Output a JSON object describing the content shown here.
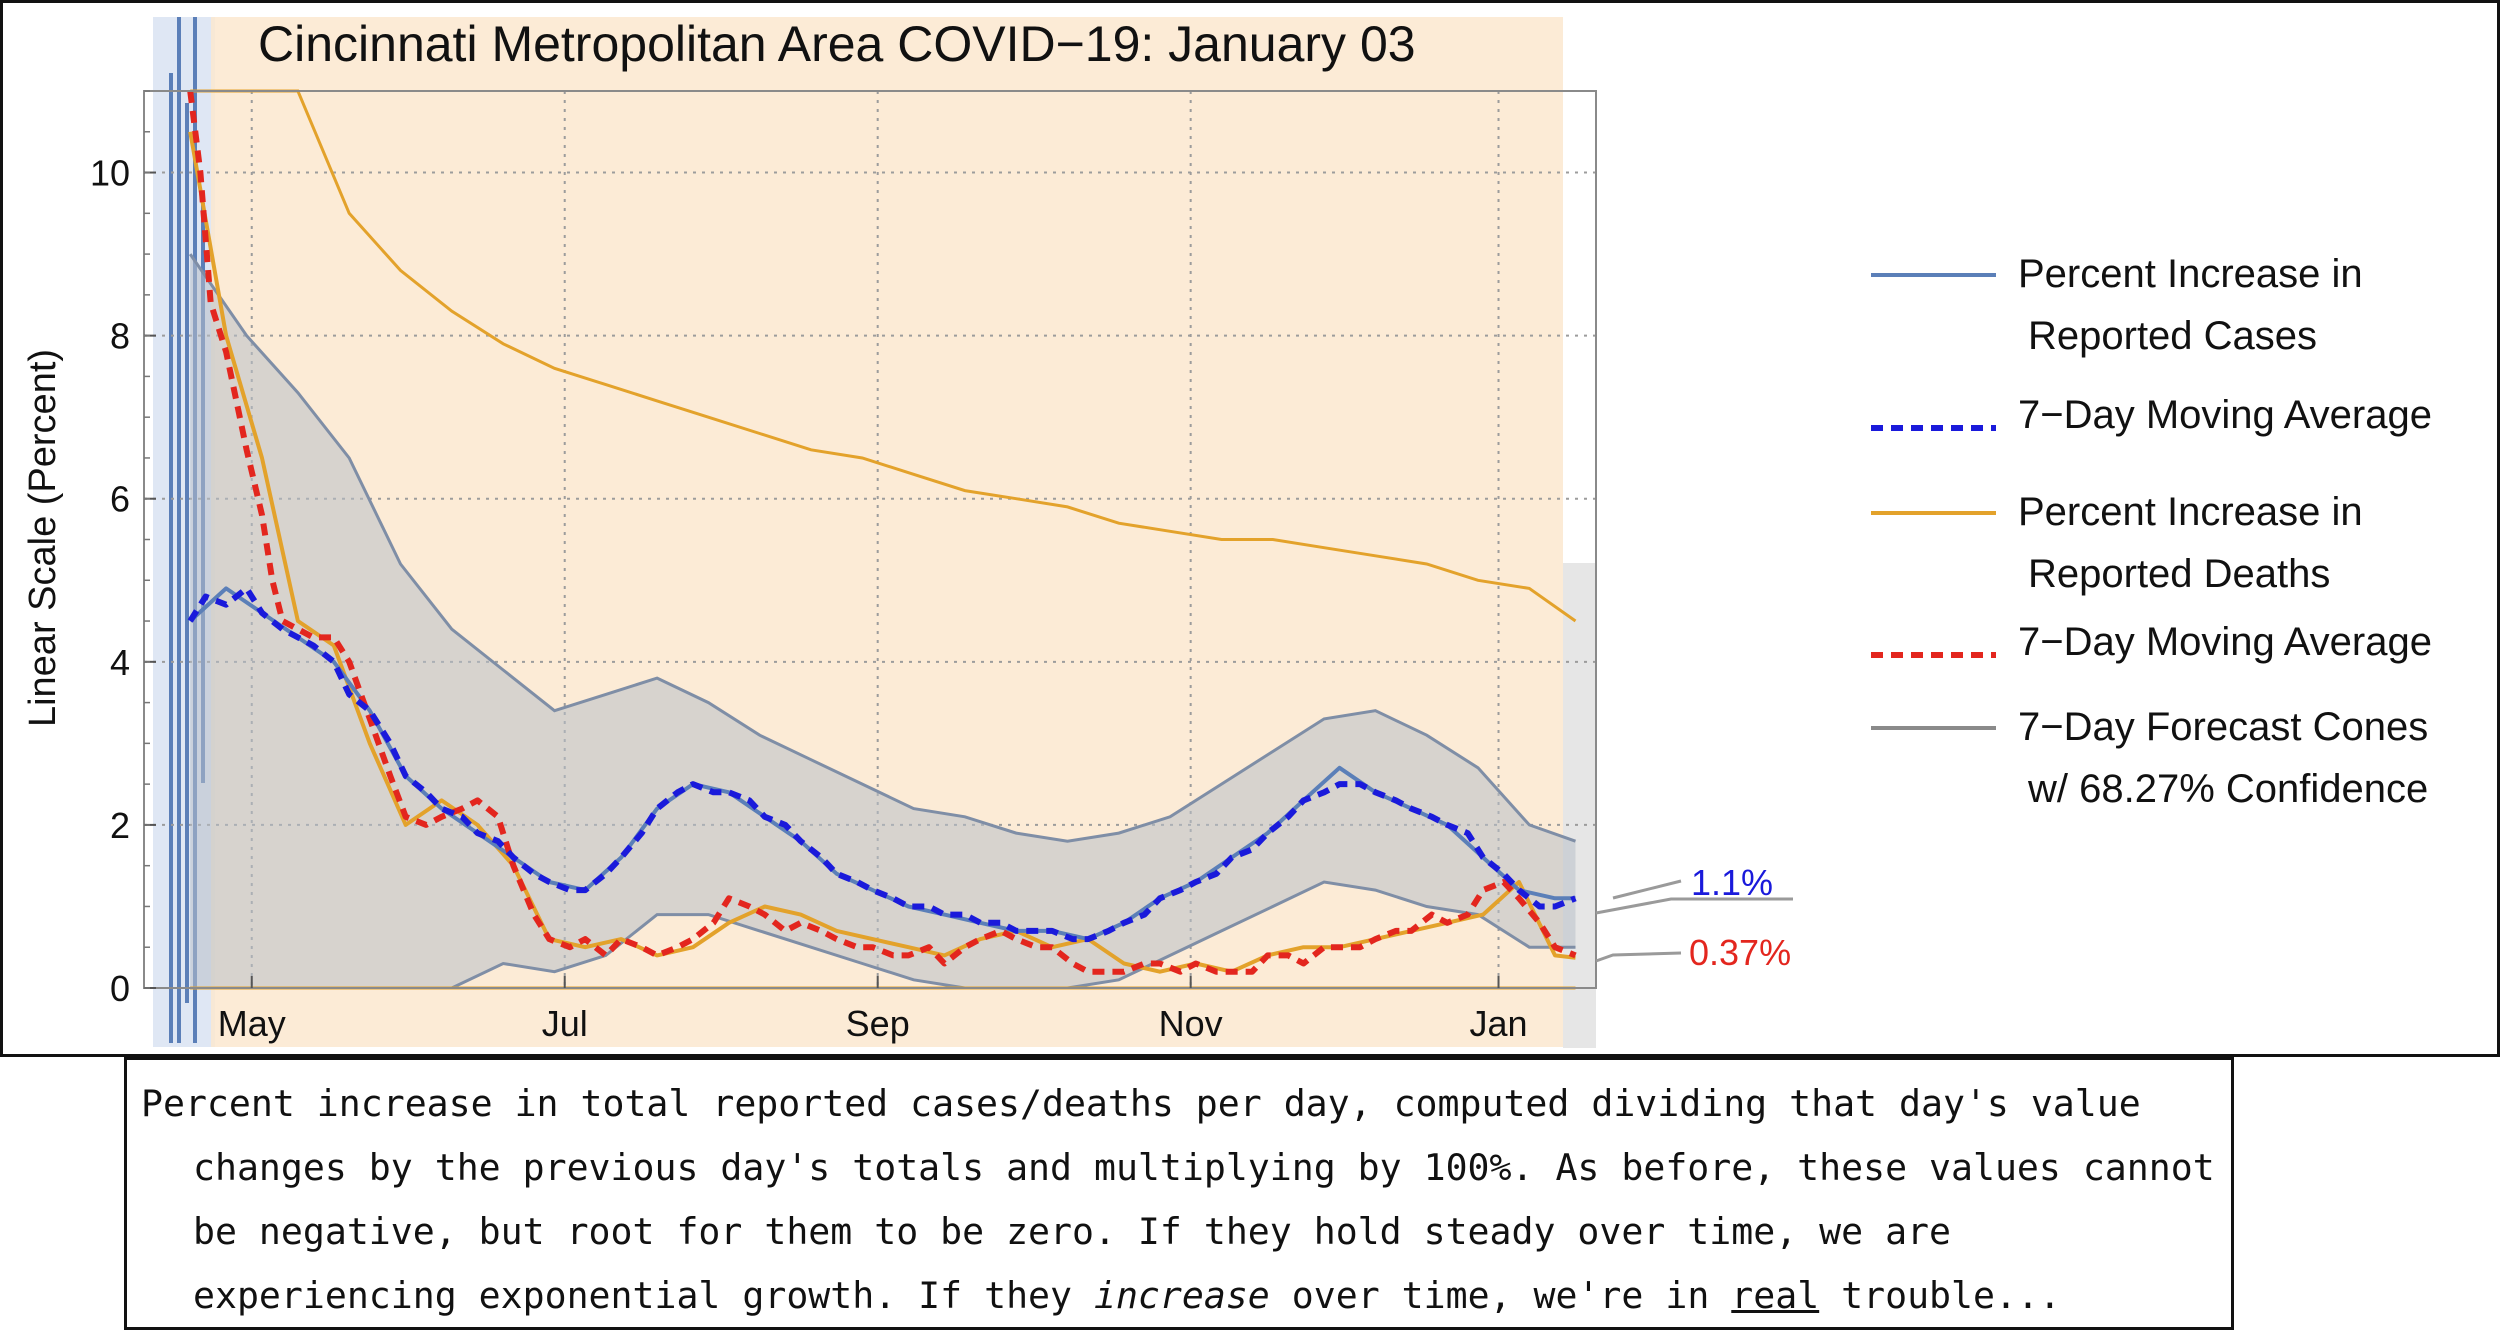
{
  "chart_data": {
    "type": "line",
    "title": "Cincinnati Metropolitan Area COVID−19: January 03",
    "xlabel": "",
    "ylabel": "Linear Scale (Percent)",
    "x_tick_labels": [
      "May",
      "Jul",
      "Sep",
      "Nov",
      "Jan"
    ],
    "y_tick_labels": [
      "0",
      "2",
      "4",
      "6",
      "8",
      "10"
    ],
    "ylim": [
      0,
      11
    ],
    "grid": true,
    "legend_position": "right",
    "legend": [
      {
        "line1": "Percent Increase in",
        "line2": "Reported Cases",
        "color": "#5b7fb8",
        "style": "solid"
      },
      {
        "line1": "7−Day Moving Average",
        "line2": "",
        "color": "#1a1adb",
        "style": "dashed"
      },
      {
        "line1": "Percent Increase in",
        "line2": "Reported Deaths",
        "color": "#e3a22b",
        "style": "solid"
      },
      {
        "line1": "7−Day Moving Average",
        "line2": "",
        "color": "#e3261e",
        "style": "dashed"
      },
      {
        "line1": "7−Day Forecast Cones",
        "line2": "w/ 68.27% Confidence",
        "color": "#8a8a8a",
        "style": "solid"
      }
    ],
    "end_labels": {
      "cases": "1.1%",
      "deaths": "0.37%"
    },
    "series": [
      {
        "name": "Percent Increase in Reported Cases",
        "x": [
          9,
          16,
          23,
          30,
          37,
          44,
          51,
          58,
          65,
          72,
          79,
          86,
          93,
          100,
          107,
          114,
          121,
          128,
          135,
          142,
          149,
          156,
          163,
          170,
          177,
          184,
          191,
          198,
          205,
          212,
          219,
          226,
          233,
          240,
          247,
          254,
          261,
          268,
          275,
          279
        ],
        "values": [
          4.5,
          4.9,
          4.6,
          4.3,
          4.0,
          3.4,
          2.6,
          2.2,
          1.9,
          1.6,
          1.3,
          1.2,
          1.6,
          2.2,
          2.5,
          2.4,
          2.1,
          1.8,
          1.4,
          1.2,
          1.0,
          0.9,
          0.8,
          0.7,
          0.7,
          0.6,
          0.8,
          1.1,
          1.3,
          1.6,
          1.9,
          2.3,
          2.7,
          2.4,
          2.2,
          2.0,
          1.6,
          1.2,
          1.1,
          1.1
        ]
      },
      {
        "name": "7−Day Moving Average",
        "x": [
          9,
          12,
          16,
          20,
          23,
          27,
          30,
          33,
          37,
          40,
          44,
          48,
          51,
          55,
          58,
          62,
          65,
          69,
          72,
          76,
          79,
          83,
          86,
          90,
          93,
          97,
          100,
          104,
          107,
          111,
          114,
          118,
          121,
          125,
          128,
          132,
          135,
          139,
          142,
          146,
          149,
          153,
          156,
          160,
          163,
          167,
          170,
          174,
          177,
          181,
          184,
          188,
          191,
          195,
          198,
          202,
          205,
          209,
          212,
          216,
          219,
          223,
          226,
          230,
          233,
          237,
          240,
          244,
          247,
          251,
          254,
          258,
          261,
          265,
          268,
          272,
          275,
          279
        ],
        "values": [
          4.5,
          4.8,
          4.7,
          4.9,
          4.6,
          4.4,
          4.3,
          4.2,
          4.0,
          3.6,
          3.4,
          3.0,
          2.6,
          2.4,
          2.2,
          2.1,
          1.9,
          1.8,
          1.6,
          1.4,
          1.3,
          1.2,
          1.2,
          1.4,
          1.6,
          1.9,
          2.2,
          2.4,
          2.5,
          2.4,
          2.4,
          2.3,
          2.1,
          2.0,
          1.8,
          1.6,
          1.4,
          1.3,
          1.2,
          1.1,
          1.0,
          1.0,
          0.9,
          0.9,
          0.8,
          0.8,
          0.7,
          0.7,
          0.7,
          0.6,
          0.6,
          0.7,
          0.8,
          0.9,
          1.1,
          1.2,
          1.3,
          1.4,
          1.6,
          1.7,
          1.9,
          2.1,
          2.3,
          2.4,
          2.5,
          2.5,
          2.4,
          2.3,
          2.2,
          2.1,
          2.0,
          1.9,
          1.6,
          1.4,
          1.2,
          1.0,
          1.0,
          1.1
        ]
      },
      {
        "name": "Percent Increase in Reported Deaths",
        "x": [
          9,
          16,
          23,
          30,
          37,
          44,
          51,
          58,
          65,
          72,
          79,
          86,
          93,
          100,
          107,
          114,
          121,
          128,
          135,
          142,
          149,
          156,
          163,
          170,
          177,
          184,
          191,
          198,
          205,
          212,
          219,
          226,
          233,
          240,
          247,
          254,
          261,
          268,
          275,
          279
        ],
        "values": [
          10.5,
          8.0,
          6.5,
          4.5,
          4.2,
          3.0,
          2.0,
          2.3,
          2.0,
          1.5,
          0.6,
          0.5,
          0.6,
          0.4,
          0.5,
          0.8,
          1.0,
          0.9,
          0.7,
          0.6,
          0.5,
          0.4,
          0.6,
          0.7,
          0.5,
          0.6,
          0.3,
          0.2,
          0.3,
          0.2,
          0.4,
          0.5,
          0.5,
          0.6,
          0.7,
          0.8,
          0.9,
          1.3,
          0.4,
          0.37
        ]
      },
      {
        "name": "7−Day Moving Average",
        "x": [
          9,
          11,
          13,
          16,
          18,
          20,
          23,
          25,
          27,
          30,
          33,
          37,
          40,
          44,
          48,
          51,
          55,
          58,
          62,
          65,
          69,
          72,
          76,
          79,
          83,
          86,
          90,
          93,
          97,
          100,
          104,
          107,
          111,
          114,
          118,
          121,
          125,
          128,
          132,
          135,
          139,
          142,
          146,
          149,
          153,
          156,
          160,
          163,
          167,
          170,
          174,
          177,
          181,
          184,
          188,
          191,
          195,
          198,
          202,
          205,
          209,
          212,
          216,
          219,
          223,
          226,
          230,
          233,
          237,
          240,
          244,
          247,
          251,
          254,
          258,
          261,
          265,
          268,
          272,
          275,
          279
        ],
        "values": [
          11.0,
          10.0,
          8.4,
          7.8,
          7.2,
          6.6,
          5.8,
          5.0,
          4.5,
          4.4,
          4.3,
          4.3,
          4.0,
          3.3,
          2.6,
          2.1,
          2.0,
          2.1,
          2.2,
          2.3,
          2.1,
          1.5,
          0.9,
          0.6,
          0.5,
          0.6,
          0.4,
          0.6,
          0.5,
          0.4,
          0.5,
          0.6,
          0.8,
          1.1,
          1.0,
          0.9,
          0.7,
          0.8,
          0.7,
          0.6,
          0.5,
          0.5,
          0.4,
          0.4,
          0.5,
          0.3,
          0.5,
          0.6,
          0.7,
          0.6,
          0.5,
          0.5,
          0.3,
          0.2,
          0.2,
          0.2,
          0.3,
          0.3,
          0.2,
          0.3,
          0.2,
          0.2,
          0.2,
          0.4,
          0.4,
          0.3,
          0.5,
          0.5,
          0.5,
          0.6,
          0.7,
          0.7,
          0.9,
          0.8,
          0.9,
          1.2,
          1.3,
          1.1,
          0.8,
          0.5,
          0.4
        ]
      }
    ],
    "cones": [
      {
        "name": "cases",
        "x": [
          9,
          20,
          30,
          40,
          50,
          60,
          70,
          80,
          90,
          100,
          110,
          120,
          130,
          140,
          150,
          160,
          170,
          180,
          190,
          200,
          210,
          220,
          230,
          240,
          250,
          260,
          270,
          279
        ],
        "lower": [
          0.0,
          0.0,
          0.0,
          0.0,
          0.0,
          0.0,
          0.3,
          0.2,
          0.4,
          0.9,
          0.9,
          0.7,
          0.5,
          0.3,
          0.1,
          0.0,
          0.0,
          0.0,
          0.1,
          0.4,
          0.7,
          1.0,
          1.3,
          1.2,
          1.0,
          0.9,
          0.5,
          0.5
        ],
        "upper": [
          9.0,
          8.0,
          7.3,
          6.5,
          5.2,
          4.4,
          3.9,
          3.4,
          3.6,
          3.8,
          3.5,
          3.1,
          2.8,
          2.5,
          2.2,
          2.1,
          1.9,
          1.8,
          1.9,
          2.1,
          2.5,
          2.9,
          3.3,
          3.4,
          3.1,
          2.7,
          2.0,
          1.8
        ]
      },
      {
        "name": "deaths",
        "x": [
          9,
          20,
          30,
          40,
          50,
          60,
          70,
          80,
          90,
          100,
          110,
          120,
          130,
          140,
          150,
          160,
          170,
          180,
          190,
          200,
          210,
          220,
          230,
          240,
          250,
          260,
          270,
          279
        ],
        "lower": [
          0.0,
          0.0,
          0.0,
          0.0,
          0.0,
          0.0,
          0.0,
          0.0,
          0.0,
          0.0,
          0.0,
          0.0,
          0.0,
          0.0,
          0.0,
          0.0,
          0.0,
          0.0,
          0.0,
          0.0,
          0.0,
          0.0,
          0.0,
          0.0,
          0.0,
          0.0,
          0.0,
          0.0
        ],
        "upper": [
          11.0,
          11.0,
          11.0,
          9.5,
          8.8,
          8.3,
          7.9,
          7.6,
          7.4,
          7.2,
          7.0,
          6.8,
          6.6,
          6.5,
          6.3,
          6.1,
          6.0,
          5.9,
          5.7,
          5.6,
          5.5,
          5.5,
          5.4,
          5.3,
          5.2,
          5.0,
          4.9,
          4.5
        ]
      }
    ]
  },
  "caption": {
    "line1": "Percent increase in total reported cases/deaths per day, computed dividing that day's value changes by the previous day's totals and multiplying by 100%. As before, these values cannot be negative, but root for them to be zero. If they hold steady over time, we are experiencing exponential growth. If they ",
    "emph": "increase",
    "mid": " over time, we're in ",
    "underline": "real",
    "end": " trouble..."
  },
  "colors": {
    "cases": "#5b7fb8",
    "cases_avg": "#1a1adb",
    "deaths": "#e3a22b",
    "deaths_avg": "#e3261e",
    "cone": "#8a8a8a",
    "cone_fill": "#fbe7cf",
    "cases_band": "#dbe4f3"
  }
}
